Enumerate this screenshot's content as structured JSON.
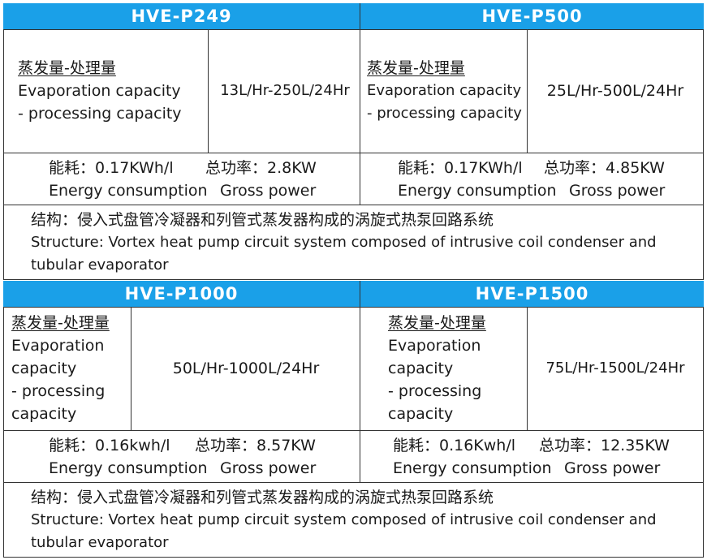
{
  "products": [
    {
      "model": "HVE-P249",
      "capacity_cn": "蒸发量-处理量",
      "capacity_en_1": "Evaporation capacity",
      "capacity_en_2": "- processing capacity",
      "capacity_value": "13L/Hr-250L/24Hr",
      "energy_cn": "能耗：0.17KWh/l",
      "power_cn": "总功率：2.8KW",
      "energy_en": "Energy consumption",
      "power_en": "Gross power"
    },
    {
      "model": "HVE-P500",
      "capacity_cn": "蒸发量-处理量",
      "capacity_en_1": "Evaporation capacity",
      "capacity_en_2": "- processing capacity",
      "capacity_value": "25L/Hr-500L/24Hr",
      "energy_cn": "能耗：0.17KWh/l",
      "power_cn": "总功率：4.85KW",
      "energy_en": "Energy consumption",
      "power_en": "Gross power"
    },
    {
      "model": "HVE-P1000",
      "capacity_cn": "蒸发量-处理量",
      "capacity_en_1": "Evaporation",
      "capacity_en_2": "capacity",
      "capacity_en_3": "- processing",
      "capacity_en_4": "capacity",
      "capacity_value": "50L/Hr-1000L/24Hr",
      "energy_cn": "能耗：0.16kwh/l",
      "power_cn": "总功率：8.57KW",
      "energy_en": "Energy consumption",
      "power_en": "Gross power"
    },
    {
      "model": "HVE-P1500",
      "capacity_cn": "蒸发量-处理量",
      "capacity_en_1": "Evaporation",
      "capacity_en_2": "capacity",
      "capacity_en_3": "- processing",
      "capacity_en_4": "capacity",
      "capacity_value": "75L/Hr-1500L/24Hr",
      "energy_cn": "能耗：0.16Kwh/l",
      "power_cn": "总功率：12.35KW",
      "energy_en": "Energy consumption",
      "power_en": "Gross power"
    }
  ],
  "structure": [
    {
      "cn": "结构：侵入式盘管冷凝器和列管式蒸发器构成的涡旋式热泵回路系统",
      "en_1": "Structure: Vortex heat pump circuit system composed of intrusive coil condenser and",
      "en_2": "tubular evaporator"
    },
    {
      "cn": "结构：侵入式盘管冷凝器和列管式蒸发器构成的涡旋式热泵回路系统",
      "en_1": "Structure: Vortex heat pump circuit system composed of intrusive coil condenser and",
      "en_2": "tubular evaporator"
    }
  ],
  "colors": {
    "header_bg": "#1aa0e8",
    "header_text": "#ffffff",
    "border": "#333333"
  }
}
